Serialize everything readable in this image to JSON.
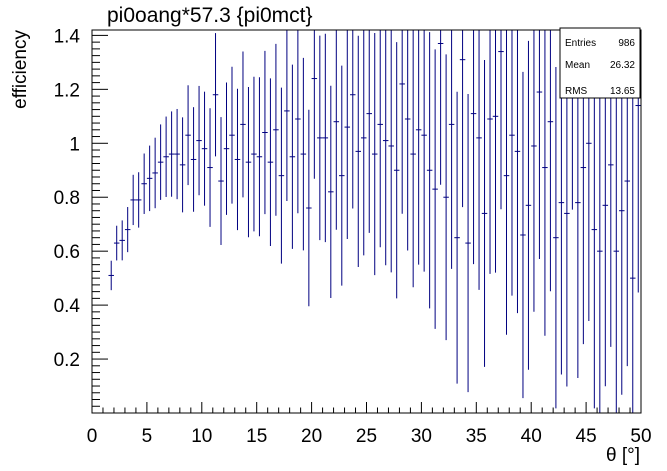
{
  "colors": {
    "marker": "#000080",
    "frame": "#000000",
    "background": "#ffffff"
  },
  "stats_box": {
    "rows": [
      {
        "label": "Entries",
        "value": "986"
      },
      {
        "label": "Mean",
        "value": "26.32"
      },
      {
        "label": "RMS",
        "value": "13.65"
      }
    ]
  },
  "chart_data": {
    "type": "scatter",
    "title": "pi0oang*57.3 {pi0mct}",
    "xlabel": "θ [°]",
    "ylabel": "efficiency",
    "xlim": [
      0,
      50
    ],
    "ylim": [
      0,
      1.42
    ],
    "x_ticks": [
      "0",
      "5",
      "10",
      "15",
      "20",
      "25",
      "30",
      "35",
      "40",
      "45",
      "50"
    ],
    "y_ticks": [
      "0.2",
      "0.4",
      "0.6",
      "0.8",
      "1",
      "1.2",
      "1.4"
    ],
    "grid": false,
    "legend": "top-right statistics box",
    "series": [
      {
        "x": [
          1.75,
          2.25,
          2.75,
          3.25,
          3.75,
          4.25,
          4.75,
          5.25,
          5.75,
          6.25,
          6.75,
          7.25,
          7.75,
          8.25,
          8.75,
          9.25,
          9.75,
          10.25,
          10.75,
          11.25,
          11.75,
          12.25,
          12.75,
          13.25,
          13.75,
          14.25,
          14.75,
          15.25,
          15.75,
          16.25,
          16.75,
          17.25,
          17.75,
          18.25,
          18.75,
          19.25,
          19.75,
          20.25,
          20.75,
          21.25,
          21.75,
          22.25,
          22.75,
          23.25,
          23.75,
          24.25,
          24.75,
          25.25,
          25.75,
          26.25,
          26.75,
          27.25,
          27.75,
          28.25,
          28.75,
          29.25,
          29.75,
          30.25,
          30.75,
          31.25,
          31.75,
          32.25,
          32.75,
          33.25,
          33.75,
          34.25,
          34.75,
          35.25,
          35.75,
          36.25,
          36.75,
          37.25,
          37.75,
          38.25,
          38.75,
          39.25,
          39.75,
          40.25,
          40.75,
          41.25,
          41.75,
          42.25,
          42.75,
          43.25,
          43.75,
          44.25,
          44.75,
          45.25,
          45.75,
          46.25,
          46.75,
          47.25,
          47.75,
          48.25,
          48.75,
          49.25,
          49.75
        ],
        "y": [
          0.51,
          0.63,
          0.64,
          0.68,
          0.79,
          0.79,
          0.85,
          0.87,
          0.89,
          0.93,
          0.95,
          0.96,
          0.96,
          0.92,
          1.03,
          0.94,
          1.01,
          0.98,
          0.91,
          1.18,
          0.86,
          0.98,
          1.03,
          0.94,
          1.07,
          0.93,
          0.96,
          0.95,
          1.04,
          0.93,
          1.05,
          0.88,
          1.12,
          0.95,
          1.09,
          0.96,
          0.76,
          1.24,
          1.02,
          1.02,
          0.82,
          1.08,
          0.88,
          1.06,
          1.18,
          0.97,
          1.02,
          1.11,
          0.96,
          1.07,
          1.01,
          0.99,
          0.9,
          1.22,
          1.09,
          0.96,
          1.05,
          1.03,
          0.9,
          0.83,
          1.37,
          0.8,
          1.07,
          0.65,
          1.31,
          0.63,
          1.11,
          1.02,
          0.74,
          1.09,
          1.1,
          1.34,
          0.88,
          1.03,
          0.97,
          0.66,
          0.77,
          0.99,
          1.19,
          0.91,
          1.08,
          0.65,
          0.78,
          0.74,
          1.4,
          0.78,
          0.91,
          1.0,
          0.68,
          0.6,
          0.77,
          0.92,
          0.6,
          0.75,
          0.86,
          0.5,
          1.14
        ]
      }
    ]
  }
}
